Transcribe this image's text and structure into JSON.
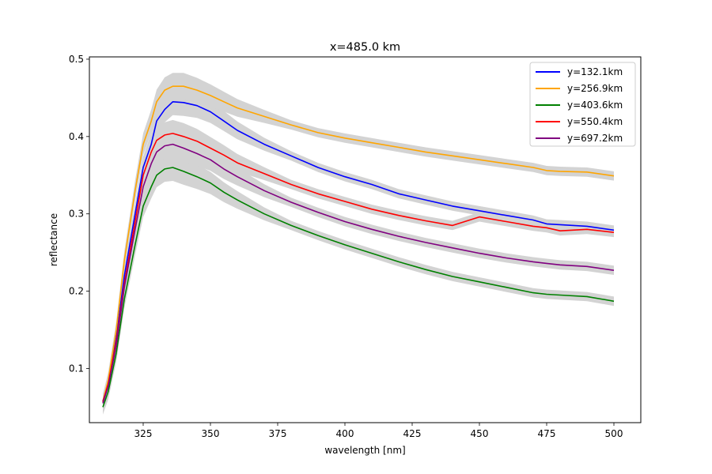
{
  "chart_data": {
    "type": "line",
    "title": "x=485.0 km",
    "xlabel": "wavelength [nm]",
    "ylabel": "reflectance",
    "xlim": [
      305,
      510
    ],
    "ylim": [
      0.03,
      0.503
    ],
    "xticks": [
      325,
      350,
      375,
      400,
      425,
      450,
      475,
      500
    ],
    "yticks": [
      0.1,
      0.2,
      0.3,
      0.4,
      0.5
    ],
    "xtick_labels": [
      "325",
      "350",
      "375",
      "400",
      "425",
      "450",
      "475",
      "500"
    ],
    "ytick_labels": [
      "0.1",
      "0.2",
      "0.3",
      "0.4",
      "0.5"
    ],
    "grid": false,
    "legend_position": "top-right",
    "uncertainty_band_color": "#d3d3d3",
    "series": [
      {
        "name": "y=132.1km",
        "color": "#0000ff",
        "x": [
          310,
          312,
          315,
          318,
          322,
          325,
          328,
          330,
          333,
          336,
          340,
          345,
          350,
          355,
          360,
          370,
          380,
          390,
          400,
          410,
          420,
          430,
          440,
          450,
          460,
          470,
          475,
          480,
          490,
          500
        ],
        "y": [
          0.058,
          0.08,
          0.14,
          0.22,
          0.3,
          0.36,
          0.39,
          0.42,
          0.435,
          0.445,
          0.444,
          0.44,
          0.432,
          0.42,
          0.408,
          0.39,
          0.375,
          0.36,
          0.348,
          0.338,
          0.326,
          0.318,
          0.31,
          0.304,
          0.298,
          0.292,
          0.287,
          0.286,
          0.284,
          0.279
        ]
      },
      {
        "name": "y=256.9km",
        "color": "#ffa500",
        "x": [
          310,
          312,
          315,
          318,
          322,
          325,
          328,
          330,
          333,
          336,
          340,
          345,
          350,
          355,
          360,
          370,
          380,
          390,
          400,
          410,
          420,
          430,
          440,
          450,
          460,
          470,
          475,
          480,
          490,
          500
        ],
        "y": [
          0.057,
          0.085,
          0.15,
          0.24,
          0.33,
          0.39,
          0.42,
          0.445,
          0.46,
          0.465,
          0.465,
          0.46,
          0.453,
          0.445,
          0.437,
          0.426,
          0.415,
          0.405,
          0.398,
          0.392,
          0.386,
          0.38,
          0.375,
          0.37,
          0.365,
          0.36,
          0.356,
          0.355,
          0.354,
          0.349
        ]
      },
      {
        "name": "y=403.6km",
        "color": "#008000",
        "x": [
          310,
          312,
          315,
          318,
          322,
          325,
          328,
          330,
          333,
          336,
          340,
          345,
          350,
          355,
          360,
          370,
          380,
          390,
          400,
          410,
          420,
          430,
          440,
          450,
          460,
          470,
          475,
          480,
          490,
          500
        ],
        "y": [
          0.05,
          0.07,
          0.12,
          0.19,
          0.26,
          0.31,
          0.335,
          0.35,
          0.358,
          0.36,
          0.355,
          0.348,
          0.34,
          0.328,
          0.318,
          0.3,
          0.285,
          0.272,
          0.26,
          0.249,
          0.238,
          0.228,
          0.219,
          0.212,
          0.205,
          0.198,
          0.196,
          0.195,
          0.193,
          0.187
        ]
      },
      {
        "name": "y=550.4km",
        "color": "#ff0000",
        "x": [
          310,
          312,
          315,
          318,
          322,
          325,
          328,
          330,
          333,
          336,
          340,
          345,
          350,
          355,
          360,
          370,
          380,
          390,
          400,
          410,
          420,
          430,
          440,
          450,
          460,
          470,
          475,
          480,
          490,
          500
        ],
        "y": [
          0.057,
          0.08,
          0.135,
          0.21,
          0.29,
          0.35,
          0.38,
          0.395,
          0.402,
          0.404,
          0.4,
          0.394,
          0.385,
          0.376,
          0.366,
          0.352,
          0.338,
          0.326,
          0.316,
          0.306,
          0.298,
          0.291,
          0.285,
          0.296,
          0.29,
          0.284,
          0.282,
          0.278,
          0.28,
          0.276
        ]
      },
      {
        "name": "y=697.2km",
        "color": "#800080",
        "x": [
          310,
          312,
          315,
          318,
          322,
          325,
          328,
          330,
          333,
          336,
          340,
          345,
          350,
          355,
          360,
          370,
          380,
          390,
          400,
          410,
          420,
          430,
          440,
          450,
          460,
          470,
          475,
          480,
          490,
          500
        ],
        "y": [
          0.055,
          0.077,
          0.13,
          0.205,
          0.28,
          0.335,
          0.365,
          0.38,
          0.388,
          0.39,
          0.385,
          0.378,
          0.37,
          0.358,
          0.348,
          0.33,
          0.315,
          0.302,
          0.29,
          0.28,
          0.271,
          0.263,
          0.256,
          0.249,
          0.243,
          0.238,
          0.236,
          0.234,
          0.232,
          0.227
        ]
      }
    ]
  }
}
